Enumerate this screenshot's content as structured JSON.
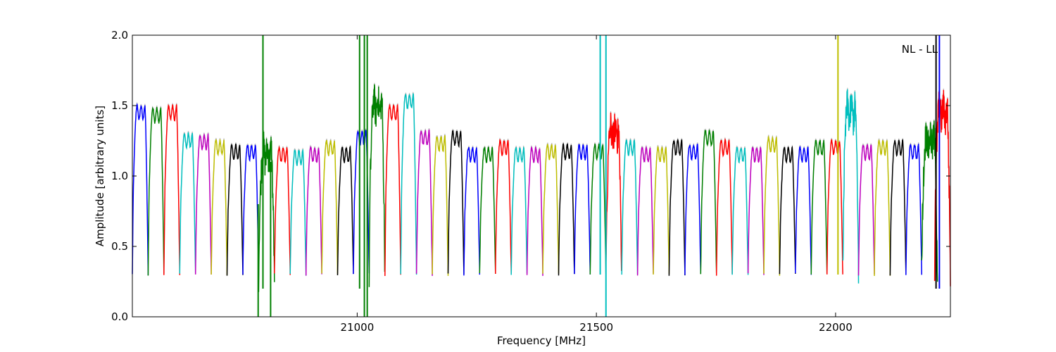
{
  "chart_data": {
    "type": "line",
    "xlabel": "Frequency [MHz]",
    "ylabel": "Amplitude [arbitrary units]",
    "annotation": "NL - LL",
    "xlim": [
      20530,
      22240
    ],
    "ylim": [
      0.0,
      2.0
    ],
    "xticks": [
      21000,
      21500,
      22000
    ],
    "xtick_labels": [
      "21000",
      "21500",
      "22000"
    ],
    "yticks": [
      0.0,
      0.5,
      1.0,
      1.5,
      2.0
    ],
    "ytick_labels": [
      "0.0",
      "0.5",
      "1.0",
      "1.5",
      "2.0"
    ],
    "grid": false,
    "band_width_mhz": 33,
    "series_colors": [
      "#0000ff",
      "#008000",
      "#ff0000",
      "#00bfbf",
      "#bf00bf",
      "#bfbf00",
      "#000000"
    ],
    "bands": [
      {
        "x_start": 20530,
        "peak": 1.5
      },
      {
        "x_start": 20563,
        "peak": 1.48
      },
      {
        "x_start": 20596,
        "peak": 1.5
      },
      {
        "x_start": 20629,
        "peak": 1.3
      },
      {
        "x_start": 20662,
        "peak": 1.29
      },
      {
        "x_start": 20695,
        "peak": 1.25
      },
      {
        "x_start": 20728,
        "peak": 1.22
      },
      {
        "x_start": 20761,
        "peak": 1.22
      },
      {
        "x_start": 20794,
        "peak": 1.2,
        "noisy": true
      },
      {
        "x_start": 20827,
        "peak": 1.2
      },
      {
        "x_start": 20860,
        "peak": 1.18
      },
      {
        "x_start": 20893,
        "peak": 1.2
      },
      {
        "x_start": 20926,
        "peak": 1.25
      },
      {
        "x_start": 20959,
        "peak": 1.2
      },
      {
        "x_start": 20992,
        "peak": 1.32
      },
      {
        "x_start": 21025,
        "peak": 1.55,
        "noisy": true
      },
      {
        "x_start": 21058,
        "peak": 1.5
      },
      {
        "x_start": 21091,
        "peak": 1.58
      },
      {
        "x_start": 21124,
        "peak": 1.32
      },
      {
        "x_start": 21157,
        "peak": 1.28
      },
      {
        "x_start": 21190,
        "peak": 1.32
      },
      {
        "x_start": 21223,
        "peak": 1.2
      },
      {
        "x_start": 21256,
        "peak": 1.2
      },
      {
        "x_start": 21289,
        "peak": 1.25
      },
      {
        "x_start": 21322,
        "peak": 1.2
      },
      {
        "x_start": 21355,
        "peak": 1.2
      },
      {
        "x_start": 21388,
        "peak": 1.22
      },
      {
        "x_start": 21421,
        "peak": 1.22
      },
      {
        "x_start": 21454,
        "peak": 1.22
      },
      {
        "x_start": 21487,
        "peak": 1.22
      },
      {
        "x_start": 21520,
        "peak": 1.35,
        "noisy": true
      },
      {
        "x_start": 21553,
        "peak": 1.25
      },
      {
        "x_start": 21586,
        "peak": 1.2
      },
      {
        "x_start": 21619,
        "peak": 1.2
      },
      {
        "x_start": 21652,
        "peak": 1.25
      },
      {
        "x_start": 21685,
        "peak": 1.22
      },
      {
        "x_start": 21718,
        "peak": 1.32
      },
      {
        "x_start": 21751,
        "peak": 1.25
      },
      {
        "x_start": 21784,
        "peak": 1.2
      },
      {
        "x_start": 21817,
        "peak": 1.2
      },
      {
        "x_start": 21850,
        "peak": 1.27
      },
      {
        "x_start": 21883,
        "peak": 1.2
      },
      {
        "x_start": 21916,
        "peak": 1.2
      },
      {
        "x_start": 21949,
        "peak": 1.25
      },
      {
        "x_start": 21982,
        "peak": 1.25
      },
      {
        "x_start": 22015,
        "peak": 1.5,
        "noisy": true
      },
      {
        "x_start": 22048,
        "peak": 1.22
      },
      {
        "x_start": 22081,
        "peak": 1.25
      },
      {
        "x_start": 22114,
        "peak": 1.25
      },
      {
        "x_start": 22147,
        "peak": 1.22
      },
      {
        "x_start": 22180,
        "peak": 1.3,
        "noisy": true
      },
      {
        "x_start": 22207,
        "peak": 1.5,
        "noisy": true
      }
    ],
    "spikes": [
      {
        "x": 20793,
        "y_min": 0.0,
        "y_max": 0.8,
        "color": "#008000"
      },
      {
        "x": 20803,
        "y_min": 0.2,
        "y_max": 2.0,
        "color": "#008000"
      },
      {
        "x": 20819,
        "y_min": 0.0,
        "y_max": 1.1,
        "color": "#008000"
      },
      {
        "x": 21005,
        "y_min": 0.2,
        "y_max": 2.0,
        "color": "#008000"
      },
      {
        "x": 21015,
        "y_min": 0.0,
        "y_max": 2.0,
        "color": "#008000"
      },
      {
        "x": 21021,
        "y_min": 0.0,
        "y_max": 2.0,
        "color": "#008000"
      },
      {
        "x": 21508,
        "y_min": 0.3,
        "y_max": 2.0,
        "color": "#00bfbf"
      },
      {
        "x": 21520,
        "y_min": 0.0,
        "y_max": 2.0,
        "color": "#00bfbf"
      },
      {
        "x": 22005,
        "y_min": 0.3,
        "y_max": 2.0,
        "color": "#bfbf00"
      },
      {
        "x": 22210,
        "y_min": 0.2,
        "y_max": 2.0,
        "color": "#000000"
      },
      {
        "x": 22217,
        "y_min": 0.2,
        "y_max": 2.0,
        "color": "#0000ff"
      }
    ]
  }
}
